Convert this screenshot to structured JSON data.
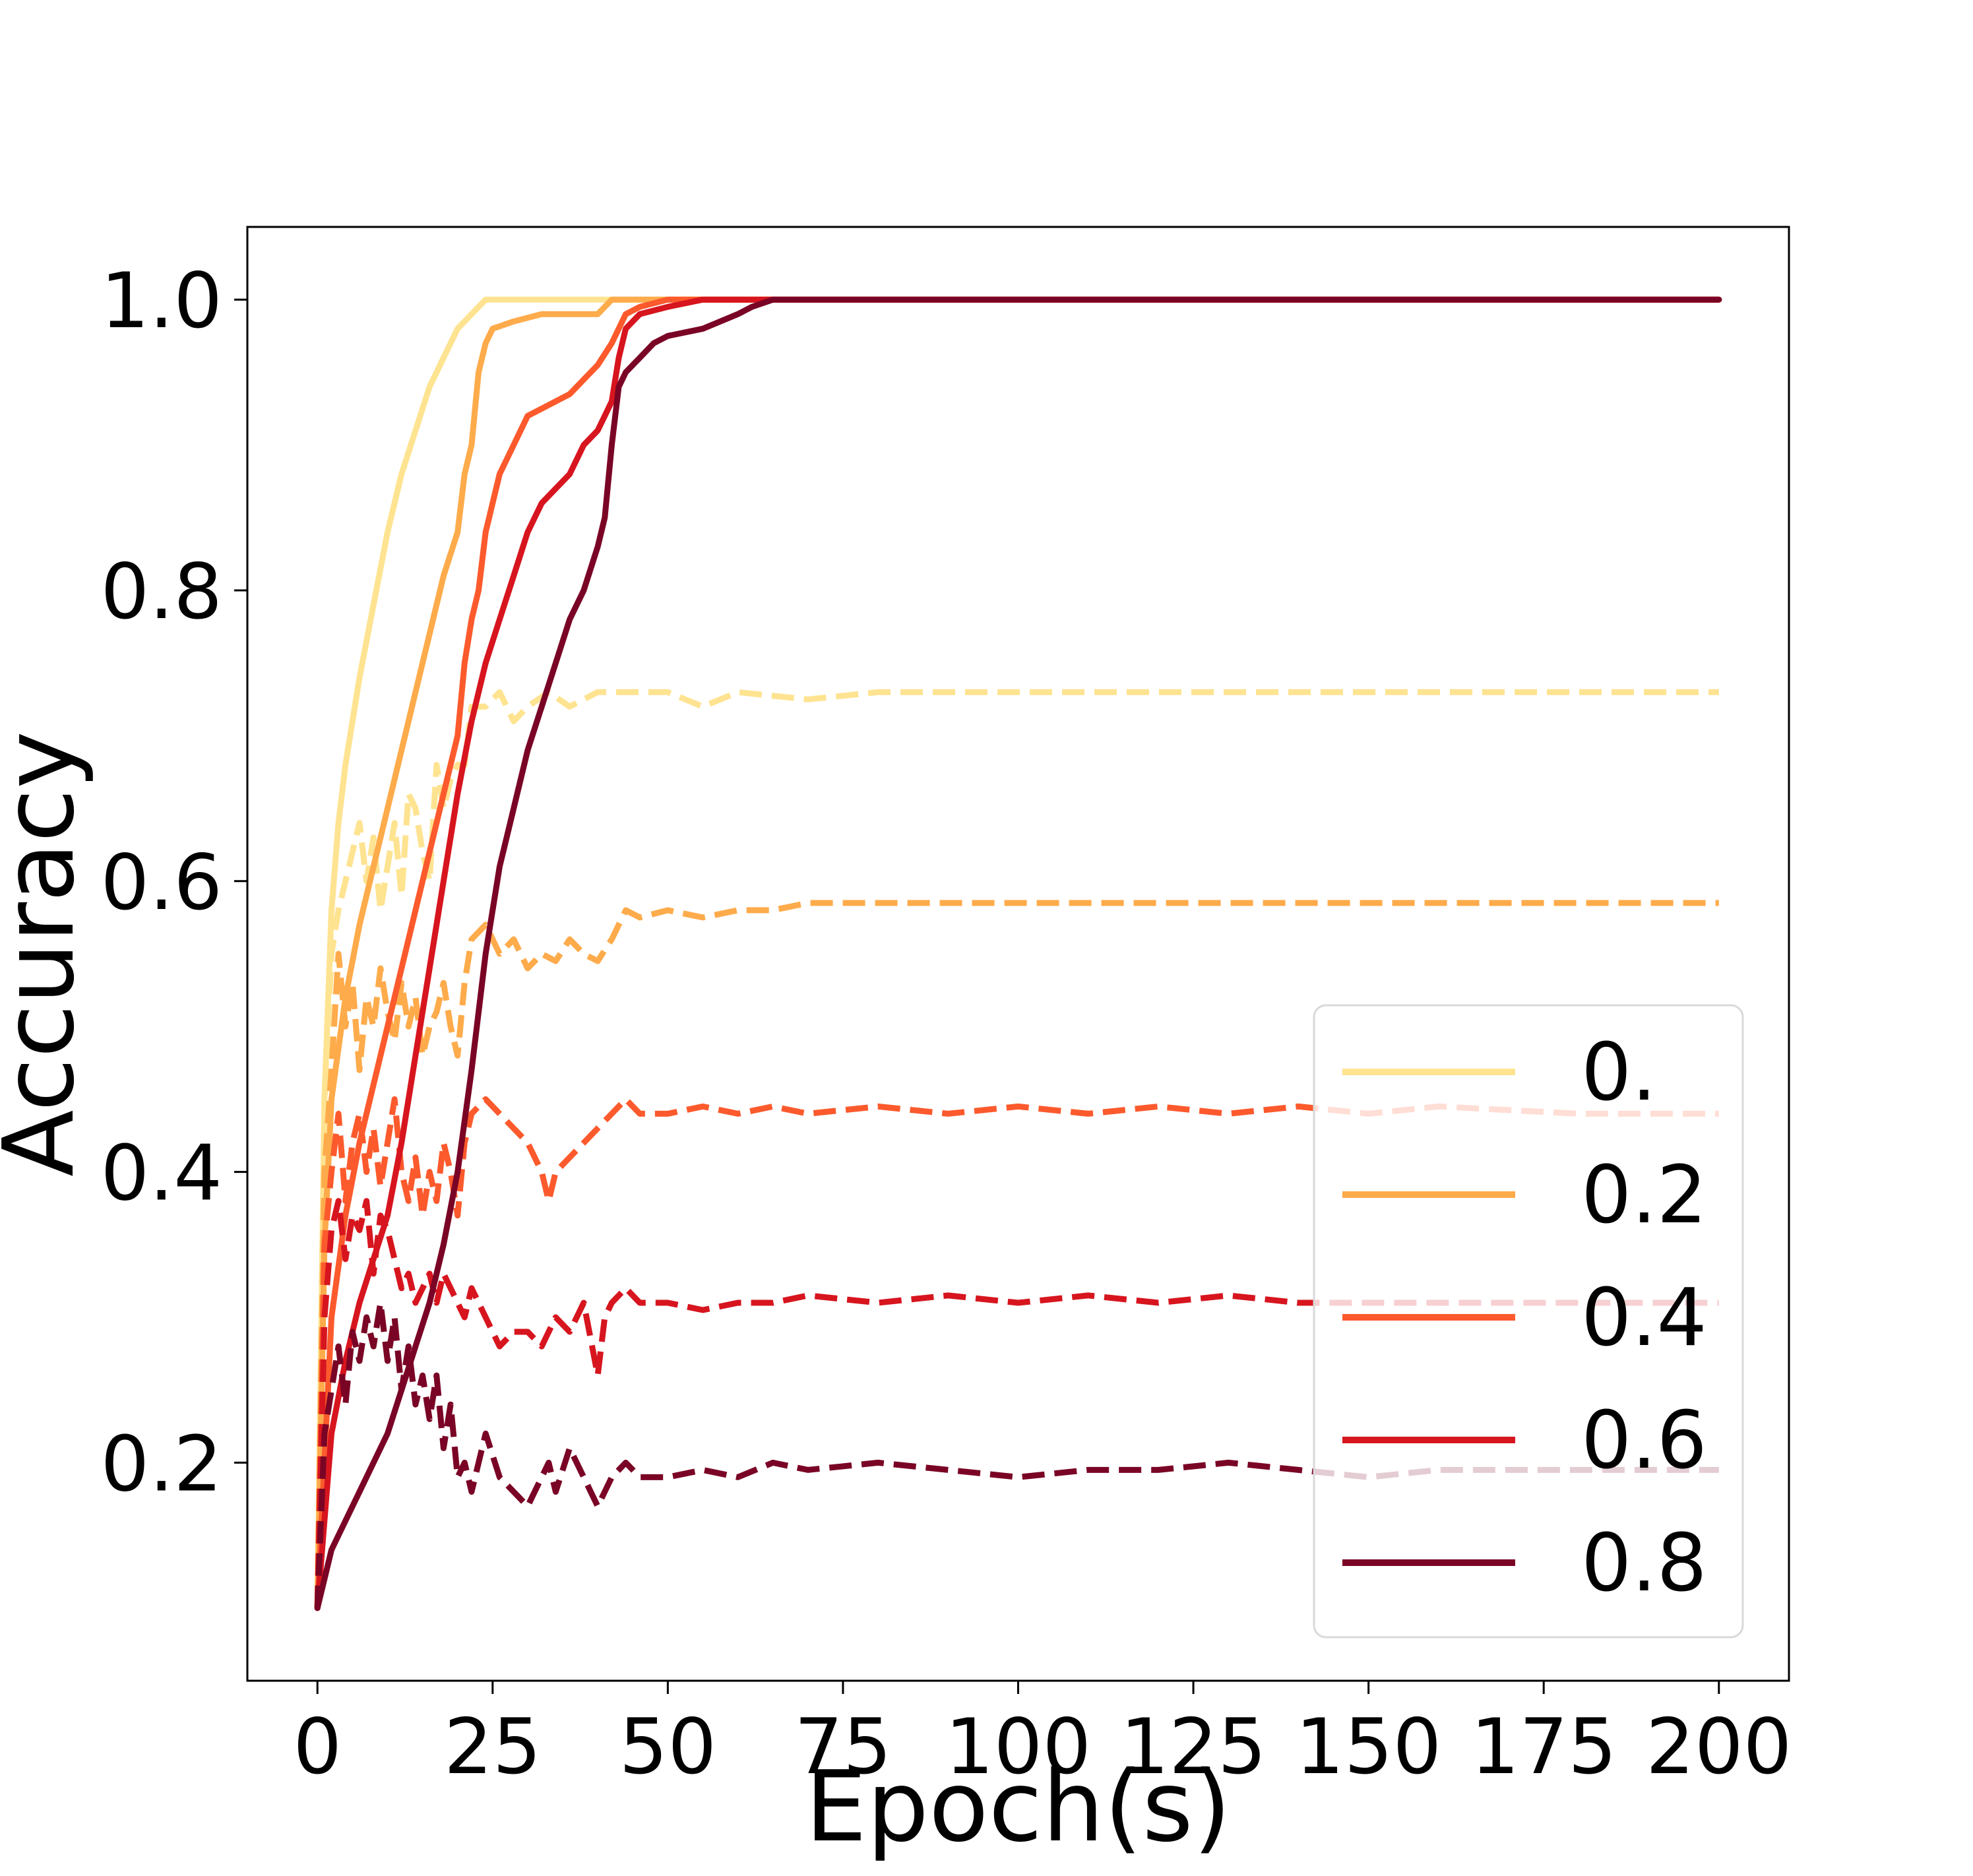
{
  "chart_data": {
    "type": "line",
    "title": "",
    "xlabel": "Epoch(s)",
    "ylabel": "Accuracy",
    "xlim": [
      -10,
      210
    ],
    "ylim": [
      0.05,
      1.05
    ],
    "xticks": [
      0,
      25,
      50,
      75,
      100,
      125,
      150,
      175,
      200
    ],
    "yticks": [
      0.2,
      0.4,
      0.6,
      0.8,
      1.0
    ],
    "xtick_labels": [
      "0",
      "25",
      "50",
      "75",
      "100",
      "125",
      "150",
      "175",
      "200"
    ],
    "ytick_labels": [
      "0.2",
      "0.4",
      "0.6",
      "0.8",
      "1.0"
    ],
    "grid": false,
    "legend_position": "lower-right",
    "legend": [
      "0.",
      "0.2",
      "0.4",
      "0.6",
      "0.8"
    ],
    "line_styles": {
      "solid": "train",
      "dashed": "test"
    },
    "series": [
      {
        "name": "0.",
        "color": "#fee391",
        "solid": {
          "x": [
            0,
            1,
            2,
            3,
            4,
            6,
            8,
            10,
            12,
            14,
            16,
            18,
            20,
            22,
            24,
            30,
            40,
            200
          ],
          "y": [
            0.1,
            0.45,
            0.58,
            0.64,
            0.68,
            0.74,
            0.79,
            0.84,
            0.88,
            0.91,
            0.94,
            0.96,
            0.98,
            0.99,
            1.0,
            1.0,
            1.0,
            1.0
          ]
        },
        "dashed": {
          "x": [
            0,
            1,
            2,
            3,
            4,
            5,
            6,
            7,
            8,
            9,
            10,
            11,
            12,
            13,
            14,
            15,
            16,
            17,
            18,
            19,
            20,
            21,
            22,
            24,
            26,
            28,
            30,
            33,
            36,
            40,
            45,
            50,
            55,
            60,
            70,
            80,
            90,
            100,
            120,
            140,
            160,
            180,
            200
          ],
          "y": [
            0.1,
            0.45,
            0.55,
            0.58,
            0.6,
            0.62,
            0.64,
            0.6,
            0.63,
            0.58,
            0.61,
            0.64,
            0.59,
            0.66,
            0.65,
            0.62,
            0.6,
            0.68,
            0.65,
            0.67,
            0.68,
            0.68,
            0.72,
            0.72,
            0.73,
            0.71,
            0.72,
            0.73,
            0.72,
            0.73,
            0.73,
            0.73,
            0.72,
            0.73,
            0.725,
            0.73,
            0.73,
            0.73,
            0.73,
            0.73,
            0.73,
            0.73,
            0.73
          ]
        }
      },
      {
        "name": "0.2",
        "color": "#feab4b",
        "solid": {
          "x": [
            0,
            1,
            2,
            4,
            6,
            8,
            10,
            12,
            14,
            16,
            18,
            20,
            21,
            22,
            23,
            24,
            25,
            28,
            32,
            36,
            40,
            42,
            44,
            46,
            50,
            60,
            200
          ],
          "y": [
            0.1,
            0.35,
            0.45,
            0.52,
            0.57,
            0.61,
            0.65,
            0.69,
            0.73,
            0.77,
            0.81,
            0.84,
            0.88,
            0.9,
            0.95,
            0.97,
            0.98,
            0.985,
            0.99,
            0.99,
            0.99,
            1.0,
            1.0,
            1.0,
            1.0,
            1.0,
            1.0
          ]
        },
        "dashed": {
          "x": [
            0,
            1,
            2,
            3,
            4,
            5,
            6,
            7,
            8,
            9,
            10,
            11,
            12,
            13,
            14,
            15,
            16,
            17,
            18,
            19,
            20,
            21,
            22,
            24,
            26,
            28,
            30,
            32,
            34,
            36,
            38,
            40,
            42,
            44,
            46,
            50,
            55,
            60,
            65,
            70,
            80,
            100,
            120,
            140,
            160,
            180,
            200
          ],
          "y": [
            0.1,
            0.4,
            0.47,
            0.55,
            0.5,
            0.53,
            0.47,
            0.52,
            0.5,
            0.54,
            0.51,
            0.49,
            0.53,
            0.5,
            0.52,
            0.48,
            0.5,
            0.51,
            0.53,
            0.5,
            0.48,
            0.53,
            0.56,
            0.57,
            0.55,
            0.56,
            0.54,
            0.55,
            0.545,
            0.56,
            0.55,
            0.545,
            0.56,
            0.58,
            0.575,
            0.58,
            0.575,
            0.58,
            0.58,
            0.585,
            0.585,
            0.585,
            0.585,
            0.585,
            0.585,
            0.585,
            0.585
          ]
        }
      },
      {
        "name": "0.4",
        "color": "#fc5a2d",
        "solid": {
          "x": [
            0,
            2,
            4,
            6,
            8,
            10,
            12,
            14,
            16,
            18,
            20,
            21,
            22,
            23,
            24,
            26,
            28,
            30,
            32,
            34,
            36,
            38,
            40,
            42,
            44,
            46,
            50,
            60,
            200
          ],
          "y": [
            0.1,
            0.3,
            0.37,
            0.42,
            0.46,
            0.5,
            0.54,
            0.58,
            0.62,
            0.66,
            0.7,
            0.75,
            0.78,
            0.8,
            0.84,
            0.88,
            0.9,
            0.92,
            0.925,
            0.93,
            0.935,
            0.945,
            0.955,
            0.97,
            0.99,
            0.995,
            1.0,
            1.0,
            1.0
          ]
        },
        "dashed": {
          "x": [
            0,
            1,
            2,
            3,
            4,
            5,
            6,
            7,
            8,
            9,
            10,
            11,
            12,
            13,
            14,
            15,
            16,
            17,
            18,
            19,
            20,
            21,
            22,
            24,
            26,
            28,
            30,
            32,
            33,
            34,
            36,
            38,
            40,
            42,
            44,
            46,
            50,
            55,
            60,
            65,
            70,
            80,
            90,
            100,
            110,
            120,
            130,
            140,
            150,
            160,
            180,
            200
          ],
          "y": [
            0.1,
            0.35,
            0.4,
            0.44,
            0.38,
            0.42,
            0.44,
            0.4,
            0.43,
            0.39,
            0.42,
            0.45,
            0.4,
            0.38,
            0.41,
            0.37,
            0.4,
            0.38,
            0.42,
            0.4,
            0.37,
            0.42,
            0.44,
            0.45,
            0.44,
            0.43,
            0.42,
            0.4,
            0.38,
            0.4,
            0.41,
            0.42,
            0.43,
            0.44,
            0.45,
            0.44,
            0.44,
            0.445,
            0.44,
            0.445,
            0.44,
            0.445,
            0.44,
            0.445,
            0.44,
            0.445,
            0.44,
            0.445,
            0.44,
            0.445,
            0.44,
            0.44
          ]
        }
      },
      {
        "name": "0.6",
        "color": "#d7151f",
        "solid": {
          "x": [
            0,
            2,
            4,
            6,
            8,
            10,
            12,
            14,
            16,
            18,
            20,
            22,
            24,
            26,
            28,
            30,
            32,
            34,
            36,
            38,
            40,
            41,
            42,
            43,
            44,
            46,
            50,
            55,
            60,
            200
          ],
          "y": [
            0.1,
            0.22,
            0.27,
            0.31,
            0.34,
            0.37,
            0.42,
            0.48,
            0.54,
            0.6,
            0.66,
            0.71,
            0.75,
            0.78,
            0.81,
            0.84,
            0.86,
            0.87,
            0.88,
            0.9,
            0.91,
            0.92,
            0.93,
            0.96,
            0.98,
            0.99,
            0.995,
            1.0,
            1.0,
            1.0
          ]
        },
        "dashed": {
          "x": [
            0,
            1,
            2,
            3,
            4,
            5,
            6,
            7,
            8,
            9,
            10,
            11,
            12,
            13,
            14,
            15,
            16,
            17,
            18,
            19,
            20,
            21,
            22,
            24,
            26,
            28,
            30,
            32,
            34,
            36,
            38,
            40,
            41,
            42,
            44,
            46,
            50,
            55,
            60,
            65,
            70,
            80,
            90,
            100,
            110,
            120,
            130,
            140,
            150,
            160,
            180,
            200
          ],
          "y": [
            0.1,
            0.3,
            0.36,
            0.38,
            0.34,
            0.37,
            0.36,
            0.38,
            0.33,
            0.37,
            0.36,
            0.34,
            0.32,
            0.33,
            0.31,
            0.32,
            0.33,
            0.31,
            0.33,
            0.32,
            0.31,
            0.3,
            0.32,
            0.3,
            0.28,
            0.29,
            0.29,
            0.28,
            0.3,
            0.29,
            0.31,
            0.26,
            0.3,
            0.31,
            0.32,
            0.31,
            0.31,
            0.305,
            0.31,
            0.31,
            0.315,
            0.31,
            0.315,
            0.31,
            0.315,
            0.31,
            0.315,
            0.31,
            0.31,
            0.31,
            0.31,
            0.31
          ]
        }
      },
      {
        "name": "0.8",
        "color": "#7a0425",
        "solid": {
          "x": [
            0,
            1,
            2,
            4,
            6,
            8,
            10,
            12,
            14,
            16,
            18,
            20,
            22,
            24,
            26,
            28,
            30,
            32,
            34,
            36,
            38,
            40,
            41,
            42,
            43,
            44,
            46,
            48,
            50,
            55,
            60,
            62,
            65,
            70,
            80,
            200
          ],
          "y": [
            0.1,
            0.12,
            0.14,
            0.16,
            0.18,
            0.2,
            0.22,
            0.25,
            0.28,
            0.31,
            0.35,
            0.4,
            0.47,
            0.55,
            0.61,
            0.65,
            0.69,
            0.72,
            0.75,
            0.78,
            0.8,
            0.83,
            0.85,
            0.9,
            0.94,
            0.95,
            0.96,
            0.97,
            0.975,
            0.98,
            0.99,
            0.995,
            1.0,
            1.0,
            1.0,
            1.0
          ]
        },
        "dashed": {
          "x": [
            0,
            1,
            2,
            3,
            4,
            5,
            6,
            7,
            8,
            9,
            10,
            11,
            12,
            13,
            14,
            15,
            16,
            17,
            18,
            19,
            20,
            21,
            22,
            24,
            26,
            28,
            30,
            32,
            33,
            34,
            36,
            38,
            40,
            42,
            44,
            46,
            50,
            55,
            60,
            65,
            70,
            80,
            90,
            100,
            110,
            120,
            130,
            140,
            150,
            160,
            180,
            200
          ],
          "y": [
            0.1,
            0.22,
            0.25,
            0.28,
            0.24,
            0.29,
            0.27,
            0.3,
            0.28,
            0.31,
            0.27,
            0.3,
            0.25,
            0.28,
            0.24,
            0.26,
            0.23,
            0.26,
            0.21,
            0.24,
            0.19,
            0.2,
            0.18,
            0.22,
            0.19,
            0.18,
            0.17,
            0.19,
            0.2,
            0.18,
            0.21,
            0.19,
            0.17,
            0.19,
            0.2,
            0.19,
            0.19,
            0.195,
            0.19,
            0.2,
            0.195,
            0.2,
            0.195,
            0.19,
            0.195,
            0.195,
            0.2,
            0.195,
            0.19,
            0.195,
            0.195,
            0.195
          ]
        }
      }
    ]
  }
}
